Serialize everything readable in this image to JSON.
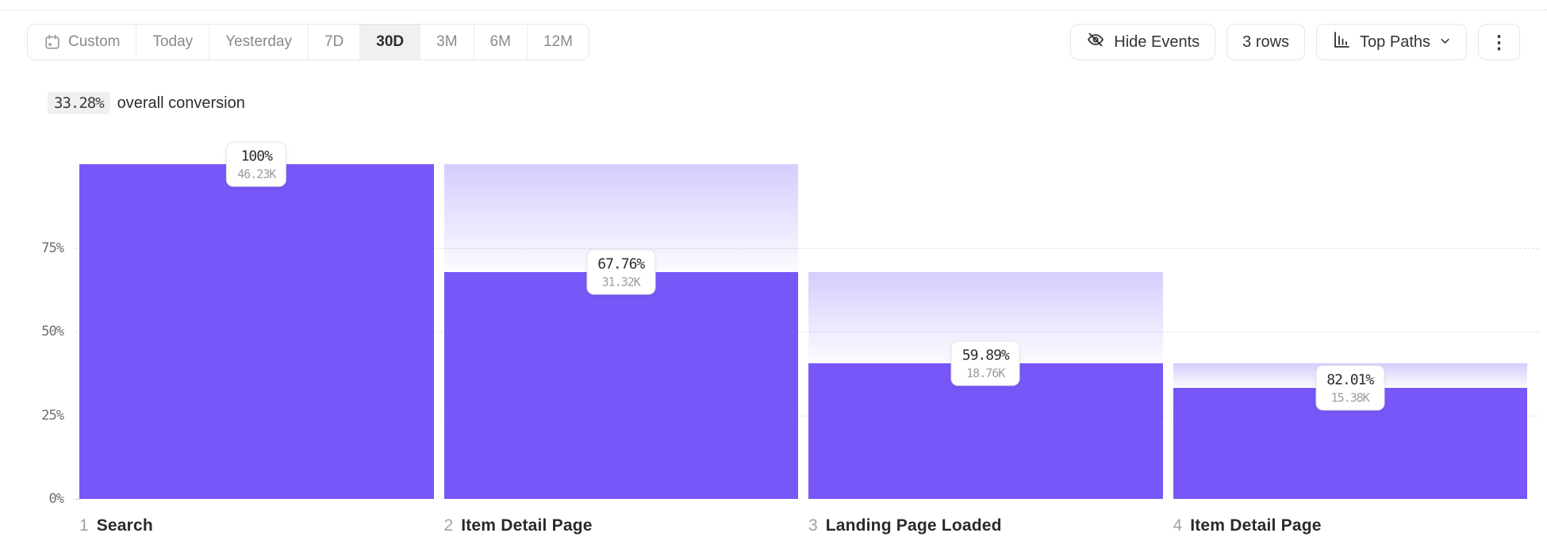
{
  "toolbar": {
    "date_ranges": [
      {
        "label": "Custom",
        "selected": false,
        "icon": "calendar-icon"
      },
      {
        "label": "Today",
        "selected": false
      },
      {
        "label": "Yesterday",
        "selected": false
      },
      {
        "label": "7D",
        "selected": false
      },
      {
        "label": "30D",
        "selected": true
      },
      {
        "label": "3M",
        "selected": false
      },
      {
        "label": "6M",
        "selected": false
      },
      {
        "label": "12M",
        "selected": false
      }
    ],
    "hide_events_label": "Hide Events",
    "rows_label": "3 rows",
    "top_paths_label": "Top Paths"
  },
  "summary": {
    "conversion_value": "33.28%",
    "conversion_text": "overall conversion"
  },
  "icons": {
    "calendar": "calendar-icon",
    "eye_off": "eye-off-icon",
    "bar_chart": "bar-chart-icon",
    "chevron_down": "chevron-down-icon",
    "kebab": "⋮"
  },
  "colors": {
    "bar": "#7857f8",
    "bar_fade_top": "rgba(120,87,248,0.30)",
    "grid": "#e3e3e3",
    "selected_tab_bg": "#f0f0f0"
  },
  "chart_data": {
    "type": "bar",
    "subtype": "funnel",
    "title": "",
    "xlabel": "",
    "ylabel": "",
    "ylim": [
      0,
      100
    ],
    "grid": "horizontal dashed at 25/50/75",
    "y_ticks": [
      {
        "label": "0%",
        "pct": 0
      },
      {
        "label": "25%",
        "pct": 25
      },
      {
        "label": "50%",
        "pct": 50
      },
      {
        "label": "75%",
        "pct": 75
      }
    ],
    "steps": [
      {
        "num": "1",
        "label": "Search",
        "conversion_pct": "100%",
        "count": "46.23K",
        "cumulative_pct": 100,
        "prev_cumulative_pct": 100
      },
      {
        "num": "2",
        "label": "Item Detail Page",
        "conversion_pct": "67.76%",
        "count": "31.32K",
        "cumulative_pct": 67.76,
        "prev_cumulative_pct": 100
      },
      {
        "num": "3",
        "label": "Landing Page Loaded",
        "conversion_pct": "59.89%",
        "count": "18.76K",
        "cumulative_pct": 40.58,
        "prev_cumulative_pct": 67.76
      },
      {
        "num": "4",
        "label": "Item Detail Page",
        "conversion_pct": "82.01%",
        "count": "15.38K",
        "cumulative_pct": 33.28,
        "prev_cumulative_pct": 40.58
      }
    ]
  }
}
